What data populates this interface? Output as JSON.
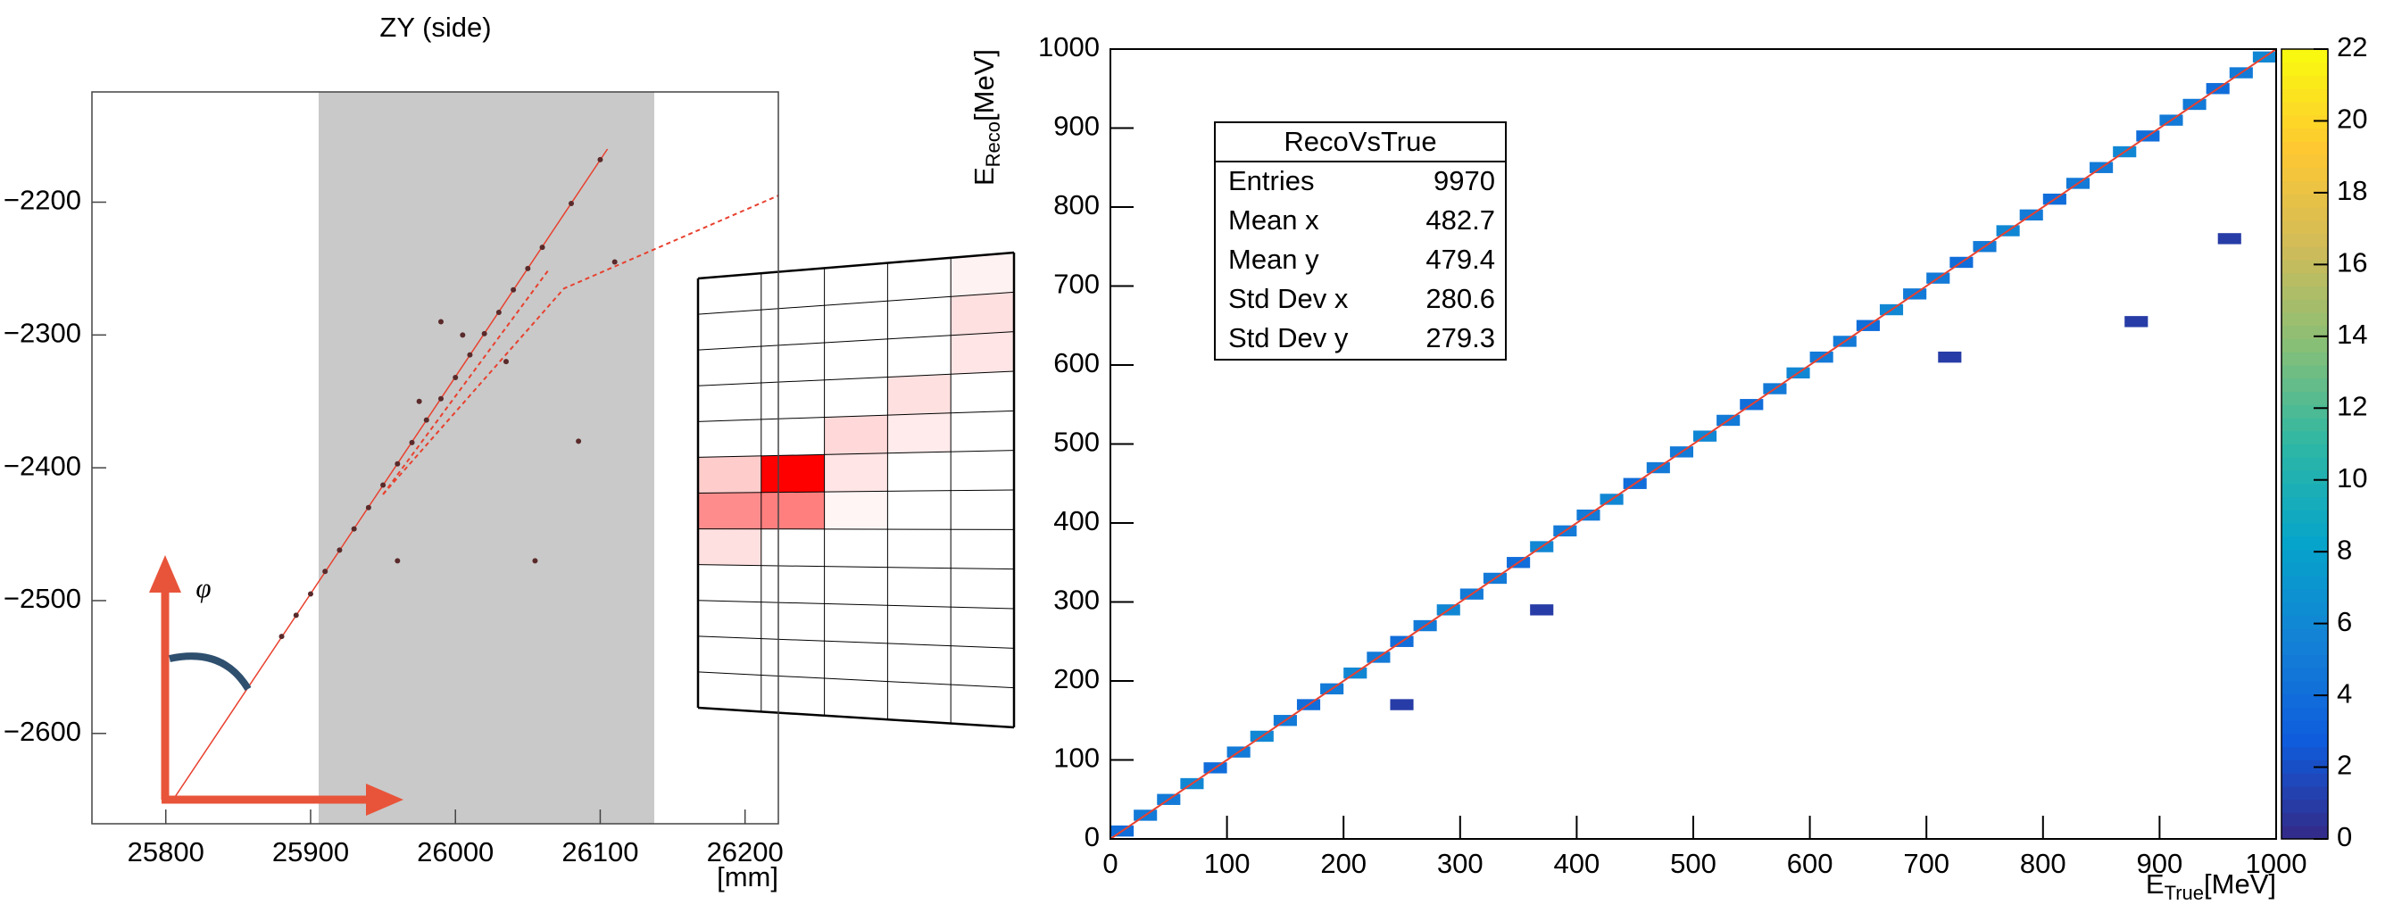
{
  "chart_data": [
    {
      "type": "scatter",
      "title": "ZY (side)",
      "x_label": "[mm]",
      "annotation": "φ",
      "xlim": [
        25749,
        26223
      ],
      "xticks": [
        25800,
        25900,
        26000,
        26100,
        26200
      ],
      "ylim": [
        -2668,
        -2117
      ],
      "yticks": [
        {
          "value": -2200,
          "label": "−2200"
        },
        {
          "value": -2300,
          "label": "−2300"
        },
        {
          "value": -2400,
          "label": "−2400"
        },
        {
          "value": -2500,
          "label": "−2500"
        },
        {
          "value": -2600,
          "label": "−2600"
        }
      ],
      "hits": {
        "color": "#5a2a2a",
        "x": [
          25880,
          25890,
          25900,
          25910,
          25920,
          25930,
          25940,
          25950,
          25960,
          25970,
          25980,
          25990,
          26000,
          26010,
          26020,
          26030,
          26040,
          26050,
          26060,
          26080,
          26100,
          25960,
          26085,
          26110,
          25990,
          26055,
          25975,
          26005,
          26035
        ],
        "y": [
          -2527,
          -2511,
          -2495,
          -2478,
          -2462,
          -2446,
          -2430,
          -2413,
          -2397,
          -2381,
          -2364,
          -2348,
          -2332,
          -2315,
          -2299,
          -2283,
          -2266,
          -2250,
          -2234,
          -2201,
          -2168,
          -2470,
          -2380,
          -2245,
          -2290,
          -2470,
          -2350,
          -2300,
          -2320
        ]
      },
      "tracks": [
        {
          "color": "#e8412f",
          "dashed": false,
          "x": [
            25805,
            26105
          ],
          "y": [
            -2650,
            -2160
          ]
        },
        {
          "color": "#e8412f",
          "dashed": true,
          "x": [
            25950,
            26075,
            26223
          ],
          "y": [
            -2420,
            -2265,
            -2195
          ]
        },
        {
          "color": "#e8412f",
          "dashed": true,
          "x": [
            25950,
            26065
          ],
          "y": [
            -2420,
            -2250
          ]
        }
      ]
    },
    {
      "type": "histogram2d",
      "x_label": {
        "main": "E",
        "sub": "True",
        "unit": "[MeV]"
      },
      "y_label": {
        "main": "E",
        "sub": "Reco",
        "unit": "[MeV]"
      },
      "xlim": [
        0,
        1000
      ],
      "xticks": [
        0,
        100,
        200,
        300,
        400,
        500,
        600,
        700,
        800,
        900,
        1000
      ],
      "ylim": [
        0,
        1000
      ],
      "yticks": [
        0,
        100,
        200,
        300,
        400,
        500,
        600,
        700,
        800,
        900,
        1000
      ],
      "zlim": [
        0,
        22
      ],
      "zticks": [
        0,
        2,
        4,
        6,
        8,
        10,
        12,
        14,
        16,
        18,
        20,
        22
      ],
      "colormap": [
        "#352a87",
        "#0f5cdd",
        "#1481d6",
        "#06a4ca",
        "#2eb7a4",
        "#87bf77",
        "#d1bb59",
        "#fec832",
        "#f9fb0e"
      ],
      "cells": {
        "x": [
          10,
          30,
          50,
          70,
          90,
          110,
          130,
          150,
          170,
          190,
          210,
          230,
          250,
          270,
          290,
          310,
          330,
          350,
          370,
          390,
          410,
          430,
          450,
          470,
          490,
          510,
          530,
          550,
          570,
          590,
          610,
          630,
          650,
          670,
          690,
          710,
          730,
          750,
          770,
          790,
          810,
          830,
          850,
          870,
          890,
          910,
          930,
          950,
          970,
          990,
          370,
          880,
          720,
          250,
          960
        ],
        "y": [
          10,
          30,
          50,
          70,
          90,
          110,
          130,
          150,
          170,
          190,
          210,
          230,
          250,
          270,
          290,
          310,
          330,
          350,
          370,
          390,
          410,
          430,
          450,
          470,
          490,
          510,
          530,
          550,
          570,
          590,
          610,
          630,
          650,
          670,
          690,
          710,
          730,
          750,
          770,
          790,
          810,
          830,
          850,
          870,
          890,
          910,
          930,
          950,
          970,
          990,
          290,
          655,
          610,
          170,
          760
        ],
        "values": [
          4,
          5,
          5,
          6,
          4,
          5,
          6,
          5,
          4,
          5,
          6,
          5,
          4,
          5,
          6,
          5,
          5,
          4,
          6,
          5,
          5,
          6,
          4,
          5,
          5,
          6,
          5,
          4,
          5,
          6,
          5,
          5,
          4,
          6,
          5,
          5,
          4,
          5,
          6,
          5,
          4,
          5,
          5,
          6,
          4,
          5,
          5,
          4,
          5,
          6,
          1,
          1,
          1,
          1,
          1
        ]
      },
      "fit": {
        "color": "#e8412f",
        "x": [
          0,
          1000
        ],
        "y": [
          0,
          1000
        ]
      },
      "stats": {
        "title": "RecoVsTrue",
        "rows": [
          [
            "Entries",
            9970
          ],
          [
            "Mean x",
            482.7
          ],
          [
            "Mean y",
            479.4
          ],
          [
            "Std Dev x",
            280.6
          ],
          [
            "Std Dev y",
            279.3
          ]
        ]
      }
    }
  ]
}
